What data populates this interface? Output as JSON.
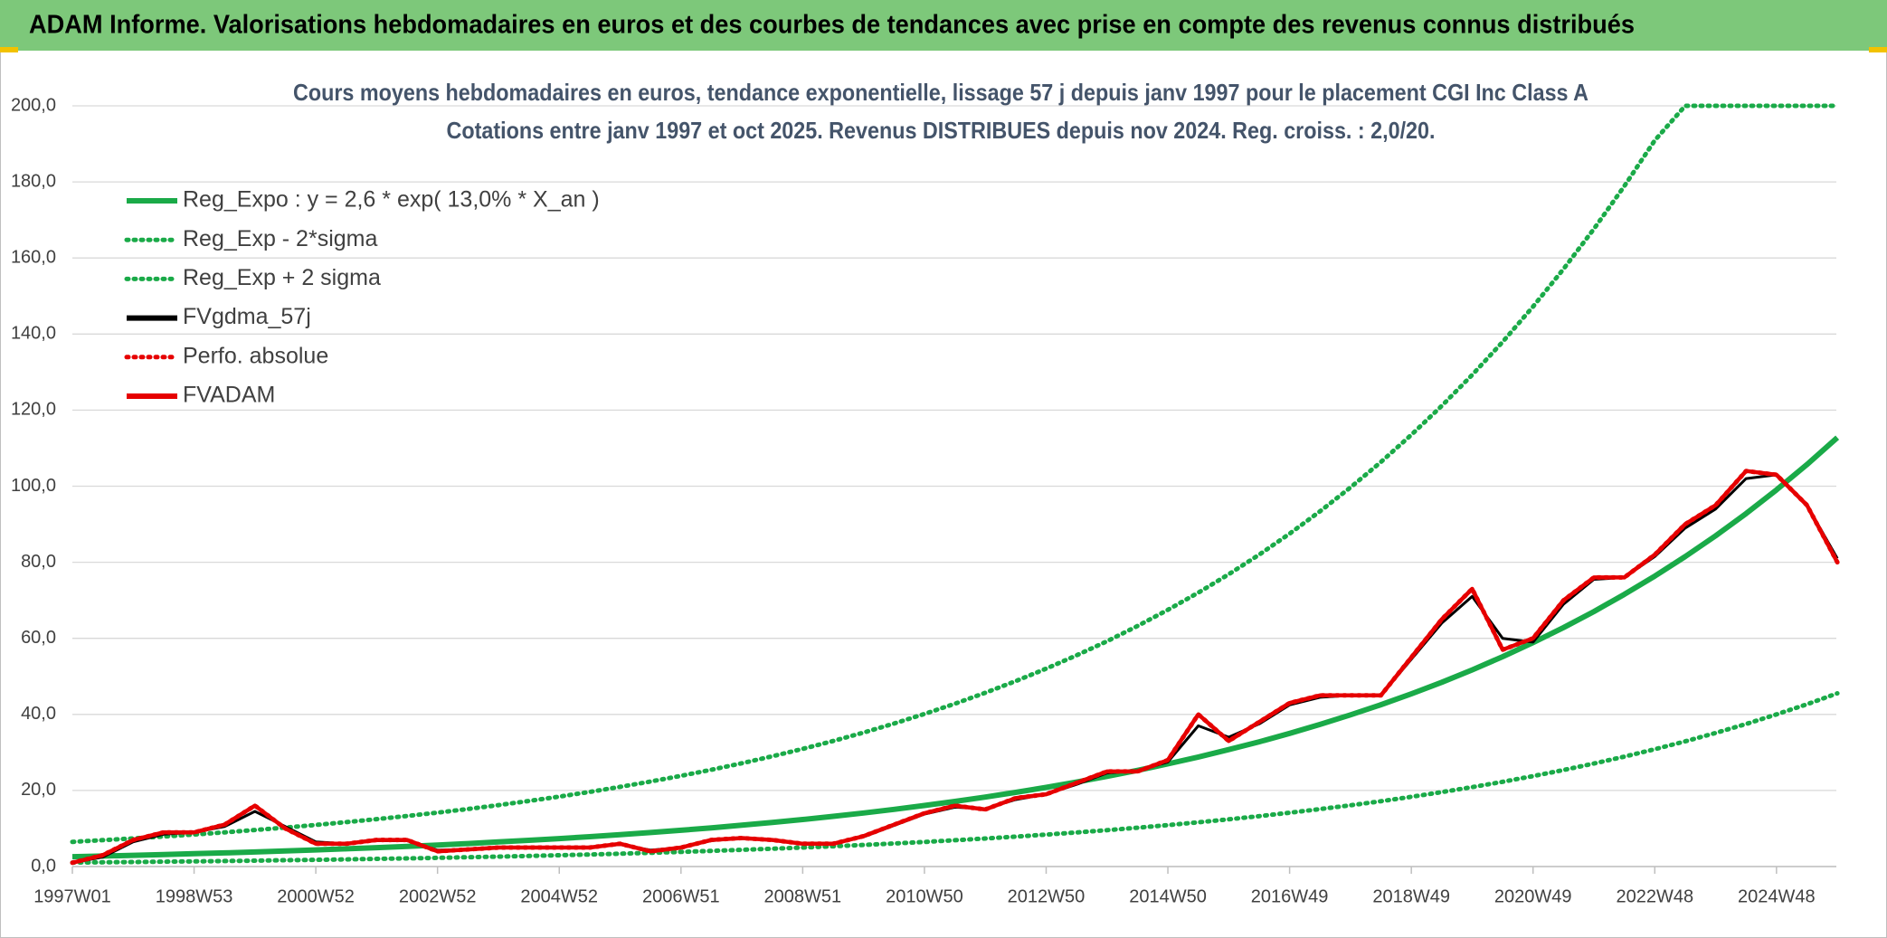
{
  "header": {
    "title": "ADAM Informe. Valorisations hebdomadaires en euros et des courbes de tendances avec prise en compte des revenus connus distribués"
  },
  "chart_data": {
    "type": "line",
    "title": "Cours moyens hebdomadaires en euros, tendance exponentielle, lissage 57 j depuis janv 1997 pour le placement CGI Inc Class A",
    "subtitle": "Cotations entre janv 1997 et oct 2025. Revenus DISTRIBUES depuis nov 2024. Reg. croiss. : 2,0/20.",
    "categories": [
      "1997W01",
      null,
      null,
      null,
      "1998W53",
      null,
      null,
      null,
      "2000W52",
      null,
      null,
      null,
      "2002W52",
      null,
      null,
      null,
      "2004W52",
      null,
      null,
      null,
      "2006W51",
      null,
      null,
      null,
      "2008W51",
      null,
      null,
      null,
      "2010W50",
      null,
      null,
      null,
      "2012W50",
      null,
      null,
      null,
      "2014W50",
      null,
      null,
      null,
      "2016W49",
      null,
      null,
      null,
      "2018W49",
      null,
      null,
      null,
      "2020W49",
      null,
      null,
      null,
      "2022W48",
      null,
      null,
      null,
      "2024W48",
      null,
      null
    ],
    "ylim": [
      0,
      200
    ],
    "yticks": [
      {
        "value": 0,
        "label": "0,0"
      },
      {
        "value": 20,
        "label": "20,0"
      },
      {
        "value": 40,
        "label": "40,0"
      },
      {
        "value": 60,
        "label": "60,0"
      },
      {
        "value": 80,
        "label": "80,0"
      },
      {
        "value": 100,
        "label": "100,0"
      },
      {
        "value": 120,
        "label": "120,0"
      },
      {
        "value": 140,
        "label": "140,0"
      },
      {
        "value": 160,
        "label": "160,0"
      },
      {
        "value": 180,
        "label": "180,0"
      },
      {
        "value": 200,
        "label": "200,0"
      }
    ],
    "grid": true,
    "legend": "upper left",
    "series": [
      {
        "name": "Reg_Expo : y = 2,6 * exp( 13,0% *  X_an )",
        "color": "#1aaa48",
        "line_style": "solid",
        "values": [
          2.6,
          2.77,
          2.96,
          3.16,
          3.37,
          3.6,
          3.84,
          4.1,
          4.37,
          4.67,
          4.98,
          5.31,
          5.67,
          6.05,
          6.46,
          6.89,
          7.36,
          7.85,
          8.38,
          8.94,
          9.54,
          10.18,
          10.86,
          11.59,
          12.37,
          13.2,
          14.09,
          15.04,
          16.05,
          17.12,
          18.27,
          19.5,
          20.81,
          22.21,
          23.7,
          25.29,
          26.99,
          28.8,
          30.74,
          32.8,
          35.01,
          37.36,
          39.87,
          42.54,
          45.4,
          48.45,
          51.7,
          55.17,
          58.88,
          62.83,
          67.05,
          71.56,
          76.36,
          81.49,
          86.96,
          92.8,
          99.03,
          105.68,
          112.78
        ]
      },
      {
        "name": "Reg_Exp - 2*sigma",
        "color": "#1aaa48",
        "line_style": "dotted",
        "values": [
          1.05,
          1.12,
          1.2,
          1.28,
          1.36,
          1.45,
          1.55,
          1.66,
          1.77,
          1.88,
          2.01,
          2.15,
          2.29,
          2.44,
          2.61,
          2.78,
          2.97,
          3.17,
          3.38,
          3.61,
          3.85,
          4.11,
          4.39,
          4.68,
          5,
          5.33,
          5.69,
          6.07,
          6.48,
          6.92,
          7.38,
          7.88,
          8.4,
          8.97,
          9.57,
          10.21,
          10.9,
          11.63,
          12.41,
          13.25,
          14.14,
          15.09,
          16.1,
          17.18,
          18.33,
          19.57,
          20.88,
          22.28,
          23.78,
          25.37,
          27.08,
          28.9,
          30.84,
          32.91,
          35.12,
          37.47,
          39.99,
          42.67,
          45.55
        ]
      },
      {
        "name": "Reg_Exp + 2 sigma",
        "color": "#1aaa48",
        "line_style": "dotted",
        "values": [
          6.5,
          6.94,
          7.4,
          7.9,
          8.43,
          9,
          9.6,
          10.25,
          10.93,
          11.67,
          12.45,
          13.29,
          14.18,
          15.13,
          16.15,
          17.23,
          18.39,
          19.62,
          20.94,
          22.35,
          23.85,
          25.45,
          27.16,
          28.99,
          30.93,
          33.01,
          35.23,
          37.59,
          40.12,
          42.81,
          45.69,
          48.75,
          52.03,
          55.52,
          59.25,
          63.23,
          67.48,
          72.01,
          76.84,
          82,
          87.52,
          93.39,
          99.66,
          106.35,
          113.5,
          121.12,
          129.25,
          137.94,
          147.2,
          157.09,
          167.64,
          178.89,
          190.91,
          200,
          200,
          200,
          200,
          200,
          200
        ]
      },
      {
        "name": "FVgdma_57j",
        "color": "#000000",
        "line_style": "solid",
        "values": [
          1,
          2.5,
          6.5,
          8.5,
          9,
          10.5,
          14.5,
          10.5,
          6.5,
          6,
          6.8,
          6.8,
          4.3,
          4.5,
          5,
          5,
          5,
          5,
          5.8,
          4.3,
          5,
          6.8,
          7.4,
          7,
          6.1,
          6,
          7.8,
          10.8,
          13.8,
          15.6,
          15.2,
          17.6,
          19,
          21.6,
          24.6,
          25.2,
          27.5,
          37,
          34,
          37.5,
          42.5,
          44.5,
          45,
          45,
          54.5,
          64,
          71,
          60,
          59,
          69,
          75.5,
          76,
          81.5,
          89,
          94,
          102,
          103,
          95,
          81
        ]
      },
      {
        "name": "Perfo. absolue",
        "color": "#e60000",
        "line_style": "dotted",
        "values": [
          1,
          3,
          7,
          9,
          9,
          11,
          16,
          10,
          6,
          6,
          7,
          7,
          4,
          4.5,
          5,
          5,
          5,
          5,
          6,
          4,
          5,
          7,
          7.5,
          7,
          6,
          6,
          8,
          11,
          14,
          16,
          15,
          18,
          19,
          22,
          25,
          25,
          28,
          40,
          33,
          38,
          43,
          45,
          45,
          45,
          55,
          65,
          73,
          57,
          60,
          70,
          76,
          76,
          82,
          90,
          95,
          104,
          103,
          95,
          80
        ]
      },
      {
        "name": "FVADAM",
        "color": "#e60000",
        "line_style": "solid",
        "values": [
          1,
          3,
          7,
          9,
          9,
          11,
          16,
          10,
          6,
          6,
          7,
          7,
          4,
          4.5,
          5,
          5,
          5,
          5,
          6,
          4,
          5,
          7,
          7.5,
          7,
          6,
          6,
          8,
          11,
          14,
          16,
          15,
          18,
          19,
          22,
          25,
          25,
          28,
          40,
          33,
          38,
          43,
          45,
          45,
          45,
          55,
          65,
          73,
          57,
          60,
          70,
          76,
          76,
          82,
          90,
          95,
          104,
          103,
          95,
          80
        ]
      }
    ]
  }
}
